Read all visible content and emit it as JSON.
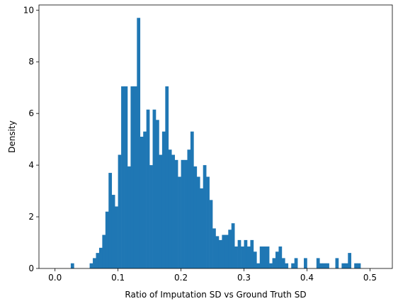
{
  "chart_data": {
    "type": "bar",
    "title": "",
    "xlabel": "Ratio of Imputation SD vs Ground Truth SD",
    "ylabel": "Density",
    "xlim": [
      -0.0255,
      0.5355
    ],
    "ylim": [
      0,
      10.2
    ],
    "xticks": [
      0.0,
      0.1,
      0.2,
      0.3,
      0.4,
      0.5
    ],
    "xtick_labels": [
      "0.0",
      "0.1",
      "0.2",
      "0.3",
      "0.4",
      "0.5"
    ],
    "yticks": [
      0,
      2,
      4,
      6,
      8,
      10
    ],
    "ytick_labels": [
      "0",
      "2",
      "4",
      "6",
      "8",
      "10"
    ],
    "bar_color": "#1f77b4",
    "grid": false,
    "bins": {
      "start": 0.0,
      "width": 0.005,
      "values": [
        0,
        0,
        0,
        0,
        0,
        0.2,
        0,
        0,
        0,
        0,
        0,
        0.2,
        0.4,
        0.6,
        0.8,
        1.3,
        2.2,
        3.7,
        2.85,
        2.4,
        4.4,
        7.05,
        7.05,
        3.95,
        7.05,
        7.05,
        9.7,
        5.1,
        5.3,
        6.15,
        4.0,
        6.15,
        5.75,
        4.4,
        5.3,
        7.05,
        4.6,
        4.4,
        4.2,
        3.55,
        4.2,
        4.2,
        4.6,
        5.3,
        3.95,
        3.55,
        3.1,
        4.0,
        3.55,
        2.65,
        1.55,
        1.25,
        1.1,
        1.3,
        1.3,
        1.5,
        1.75,
        0.85,
        1.1,
        0.85,
        1.1,
        0.85,
        1.1,
        0.65,
        0.2,
        0.85,
        0.85,
        0.85,
        0.2,
        0.4,
        0.65,
        0.85,
        0.4,
        0.2,
        0,
        0.2,
        0.4,
        0,
        0,
        0.4,
        0,
        0,
        0,
        0.4,
        0.2,
        0.2,
        0.2,
        0,
        0,
        0.4,
        0,
        0.2,
        0.2,
        0.6,
        0,
        0.2,
        0.2,
        0,
        0,
        0,
        0,
        0,
        0
      ]
    }
  }
}
